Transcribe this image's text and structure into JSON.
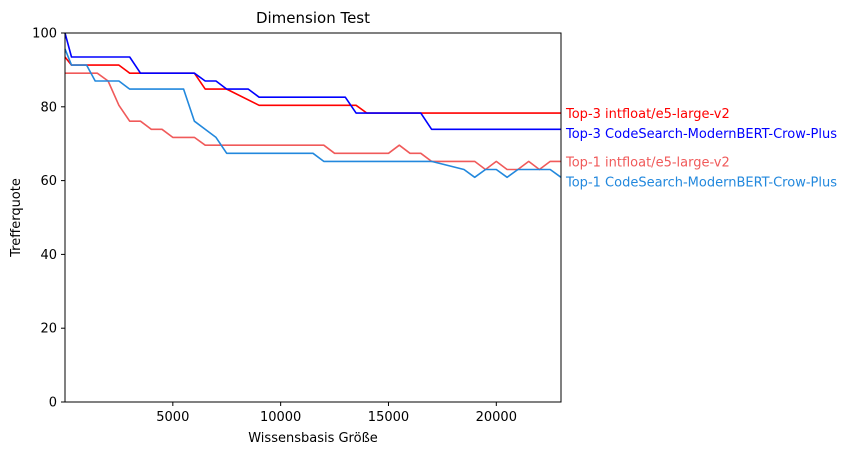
{
  "chart_data": {
    "type": "line",
    "title": "Dimension Test",
    "xlabel": "Wissensbasis Größe",
    "ylabel": "Trefferquote",
    "xlim": [
      0,
      23000
    ],
    "ylim": [
      0,
      100
    ],
    "xticks": [
      5000,
      10000,
      15000,
      20000
    ],
    "yticks": [
      0,
      20,
      40,
      60,
      80,
      100
    ],
    "grid": false,
    "legend": "inline labels at right end of lines",
    "series": [
      {
        "name": "Top-3 intfloat/e5-large-v2",
        "color": "#ff0000",
        "x": [
          0,
          300,
          2500,
          3000,
          6000,
          6500,
          7500,
          9000,
          13500,
          14000,
          16500,
          17000,
          23000
        ],
        "y": [
          93.5,
          91.3,
          91.3,
          89.1,
          89.1,
          84.8,
          84.8,
          80.4,
          80.4,
          78.3,
          78.3,
          78.3,
          78.3
        ]
      },
      {
        "name": "Top-3 CodeSearch-ModernBERT-Crow-Plus",
        "color": "#0000ff",
        "x": [
          0,
          300,
          3000,
          3500,
          6000,
          6500,
          7000,
          7500,
          8500,
          9000,
          13000,
          13500,
          16500,
          17000,
          23000
        ],
        "y": [
          100,
          93.5,
          93.5,
          89.1,
          89.1,
          87.0,
          87.0,
          84.8,
          84.8,
          82.6,
          82.6,
          78.3,
          78.3,
          73.9,
          73.9
        ]
      },
      {
        "name": "Top-1 intfloat/e5-large-v2",
        "color": "#f05a5a",
        "x": [
          0,
          1000,
          1500,
          2000,
          2500,
          3000,
          3500,
          4000,
          4500,
          5000,
          6000,
          6500,
          7500,
          12000,
          12500,
          13000,
          15000,
          15500,
          16000,
          16500,
          17000,
          19000,
          19500,
          20000,
          20500,
          21000,
          21500,
          22000,
          22500,
          23000
        ],
        "y": [
          89.1,
          89.1,
          89.1,
          87.0,
          80.4,
          76.1,
          76.1,
          73.9,
          73.9,
          71.7,
          71.7,
          69.6,
          69.6,
          69.6,
          67.4,
          67.4,
          67.4,
          69.6,
          67.4,
          67.4,
          65.2,
          65.2,
          63.0,
          65.2,
          63.0,
          63.0,
          65.2,
          63.0,
          65.2,
          65.2
        ]
      },
      {
        "name": "Top-1 CodeSearch-ModernBERT-Crow-Plus",
        "color": "#2288dd",
        "x": [
          0,
          300,
          1000,
          1400,
          2500,
          3000,
          5000,
          5500,
          6000,
          7000,
          7500,
          11500,
          12000,
          16000,
          17000,
          18500,
          19000,
          19500,
          20000,
          20500,
          21000,
          21500,
          22000,
          22500,
          23000
        ],
        "y": [
          95.7,
          91.3,
          91.3,
          87.0,
          87.0,
          84.8,
          84.8,
          84.8,
          76.1,
          71.7,
          67.4,
          67.4,
          65.2,
          65.2,
          65.2,
          63.0,
          60.9,
          63.0,
          63.0,
          60.9,
          63.0,
          63.0,
          63.0,
          63.0,
          60.9
        ]
      }
    ]
  }
}
